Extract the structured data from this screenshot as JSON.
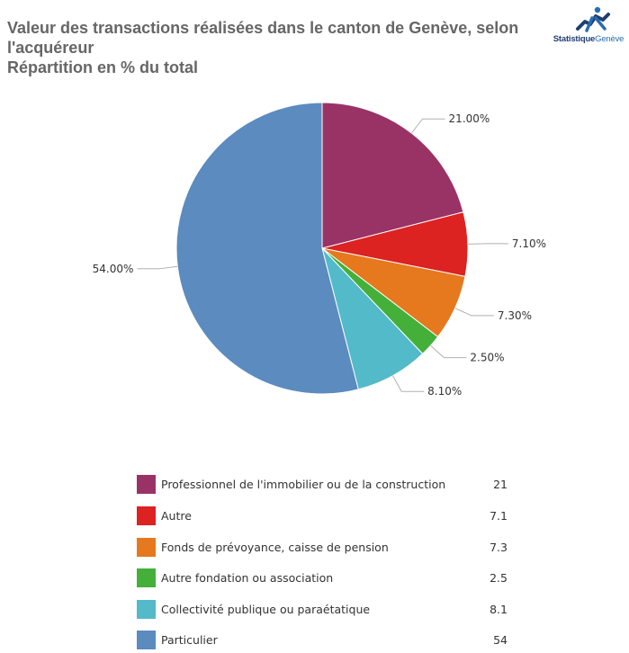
{
  "header": {
    "title_line1": "Valeur des transactions réalisées dans le canton de Genève, selon",
    "title_line2": "l'acquéreur",
    "subtitle": "Répartition en % du total"
  },
  "logo": {
    "text_main": "Statistique",
    "text_sub": "Genève",
    "brand_color": "#1f3f73"
  },
  "chart_data": {
    "type": "pie",
    "categories": [
      "Professionnel de l'immobilier ou de la construction",
      "Autre",
      "Fonds de prévoyance, caisse de pension",
      "Autre fondation ou association",
      "Collectivité publique ou paraétatique",
      "Particulier"
    ],
    "values": [
      21,
      7.1,
      7.3,
      2.5,
      8.1,
      54
    ],
    "display_values": [
      "21",
      "7.1",
      "7.3",
      "2.5",
      "8.1",
      "54"
    ],
    "slice_labels": [
      "21.00%",
      "7.10%",
      "7.30%",
      "2.50%",
      "8.10%",
      "54.00%"
    ],
    "colors": [
      "#993366",
      "#dd2222",
      "#e6781e",
      "#44b03a",
      "#52bac8",
      "#5b8bbf"
    ],
    "unit": "%",
    "legend_position": "bottom"
  }
}
